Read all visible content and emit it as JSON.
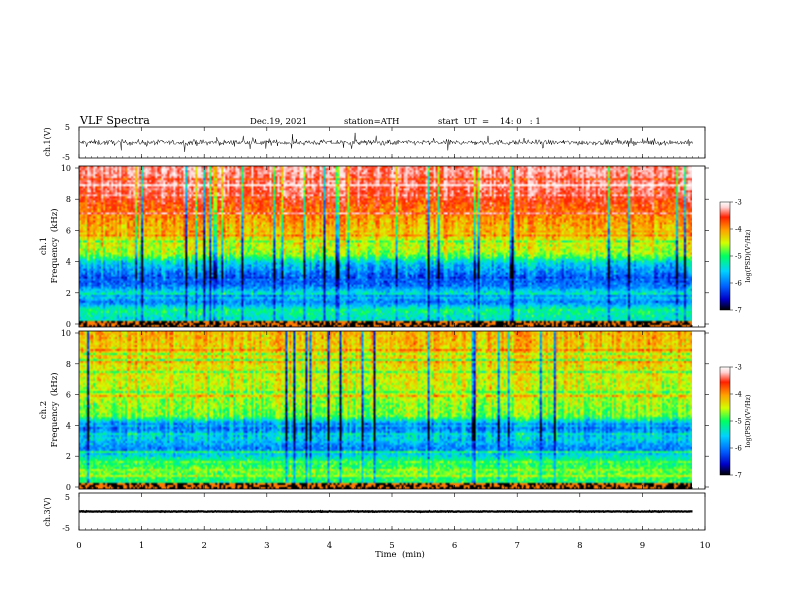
{
  "header": {
    "title": "VLF  Spectra",
    "date": "Dec.19, 2021",
    "station": "station=ATH",
    "start": "start  UT  =    14: 0   : 1"
  },
  "chart_data": [
    {
      "type": "line",
      "panel": "ch1-waveform",
      "ylabel": "ch.1(V)",
      "ylim": [
        -5,
        5
      ],
      "ytick_labels": [
        "5",
        "-5"
      ],
      "xlim": [
        0,
        10
      ],
      "baseline_value": 0,
      "amplitude": 1.5,
      "duration_min": 9.8
    },
    {
      "type": "heatmap",
      "panel": "ch1-spectrogram",
      "ylabel_line1": "ch.1",
      "ylabel_line2": "Frequency  (kHz)",
      "ylim": [
        0,
        10
      ],
      "ytick_labels": [
        "10",
        "8",
        "6",
        "4",
        "2",
        "0"
      ],
      "xlim": [
        0,
        10
      ],
      "duration_min": 9.8,
      "color_scale": {
        "label": "log(PSD)(V²/Hz)",
        "range": [
          -7,
          -3
        ],
        "tick_labels": [
          "-3",
          "-4",
          "-5",
          "-6",
          "-7"
        ],
        "colormap": [
          "#000000",
          "#0000c8",
          "#0060ff",
          "#00d2ff",
          "#00ff60",
          "#d2ff00",
          "#ffa000",
          "#ff2000",
          "#ffd2d2",
          "#ffffff"
        ]
      },
      "frequency_profile_kHz": [
        {
          "f": 0.2,
          "level": -5.6
        },
        {
          "f": 1.0,
          "level": -5.3
        },
        {
          "f": 1.5,
          "level": -6.0
        },
        {
          "f": 2.0,
          "level": -5.4
        },
        {
          "f": 2.5,
          "level": -6.0
        },
        {
          "f": 3.0,
          "level": -6.2
        },
        {
          "f": 4.0,
          "level": -5.6
        },
        {
          "f": 4.5,
          "level": -4.9
        },
        {
          "f": 5.5,
          "level": -4.6
        },
        {
          "f": 7.0,
          "level": -4.2
        },
        {
          "f": 8.5,
          "level": -3.7
        },
        {
          "f": 10.0,
          "level": -3.5
        }
      ]
    },
    {
      "type": "heatmap",
      "panel": "ch2-spectrogram",
      "ylabel_line1": "ch.2",
      "ylabel_line2": "Frequency  (kHz)",
      "ylim": [
        0,
        10
      ],
      "ytick_labels": [
        "10",
        "8",
        "6",
        "4",
        "2",
        "0"
      ],
      "xlim": [
        0,
        10
      ],
      "duration_min": 9.8,
      "color_scale": {
        "label": "log(PSD)(V²/Hz)",
        "range": [
          -7,
          -3
        ],
        "tick_labels": [
          "-3",
          "-4",
          "-5",
          "-6",
          "-7"
        ],
        "colormap": [
          "#000000",
          "#0000c8",
          "#0060ff",
          "#00d2ff",
          "#00ff60",
          "#d2ff00",
          "#ffa000",
          "#ff2000",
          "#ffd2d2",
          "#ffffff"
        ]
      },
      "frequency_profile_kHz": [
        {
          "f": 0.2,
          "level": -5.4
        },
        {
          "f": 1.0,
          "level": -5.0
        },
        {
          "f": 1.8,
          "level": -5.3
        },
        {
          "f": 2.5,
          "level": -6.0
        },
        {
          "f": 3.2,
          "level": -5.6
        },
        {
          "f": 4.0,
          "level": -6.1
        },
        {
          "f": 4.6,
          "level": -5.0
        },
        {
          "f": 6.0,
          "level": -4.8
        },
        {
          "f": 8.0,
          "level": -4.6
        },
        {
          "f": 10.0,
          "level": -4.4
        }
      ]
    },
    {
      "type": "line",
      "panel": "ch3-waveform",
      "ylabel": "ch.3(V)",
      "ylim": [
        -5,
        5
      ],
      "ytick_labels": [
        "5",
        "0",
        "-5"
      ],
      "xlim": [
        0,
        10
      ],
      "baseline_value": 0,
      "amplitude": 0.15,
      "duration_min": 9.8,
      "xlabel": "Time  (min)",
      "xtick_labels": [
        "0",
        "1",
        "2",
        "3",
        "4",
        "5",
        "6",
        "7",
        "8",
        "9",
        "10"
      ]
    }
  ]
}
